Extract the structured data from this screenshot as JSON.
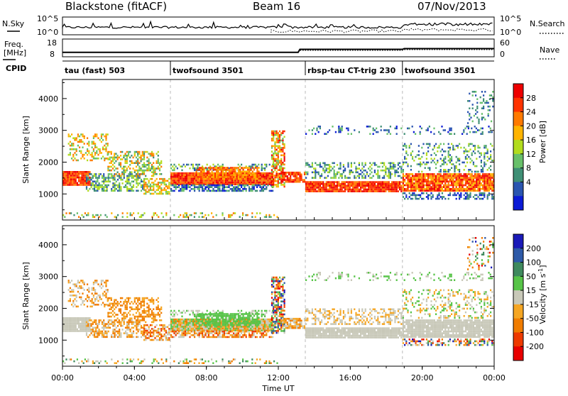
{
  "header": {
    "station": "Blackstone (fitACF)",
    "beam": "Beam 16",
    "date": "07/Nov/2013"
  },
  "chart_data": [
    {
      "type": "line",
      "panel": "noise",
      "left_label": "N.Sky",
      "right_label": "N.Search",
      "left_ticks": [
        "10^5",
        "10^0"
      ],
      "right_ticks": [
        "10^5",
        "10^0"
      ]
    },
    {
      "type": "line",
      "panel": "frequency",
      "left_label_line1": "Freq.",
      "left_label_line2": "[MHz]",
      "right_label": "Nave",
      "left_ticks": [
        "18",
        "8"
      ],
      "right_ticks": [
        "60",
        "0"
      ],
      "x": [
        0,
        13.1,
        13.2,
        18.9,
        19.0,
        24
      ],
      "freq": [
        10.5,
        10.5,
        12.2,
        12.2,
        12.6,
        12.6
      ]
    },
    {
      "type": "table",
      "panel": "cpid",
      "label": "CPID",
      "segments": [
        {
          "start": 0.0,
          "end": 6.0,
          "name": "tau (fast) 503"
        },
        {
          "start": 6.0,
          "end": 13.5,
          "name": "twofsound 3501"
        },
        {
          "start": 13.5,
          "end": 18.9,
          "name": "rbsp-tau CT-trig 230"
        },
        {
          "start": 18.9,
          "end": 24.0,
          "name": "twofsound 3501"
        }
      ]
    },
    {
      "type": "heatmap",
      "panel": "power",
      "ylabel": "Slant Range [km]",
      "yticks": [
        1000,
        2000,
        3000,
        4000
      ],
      "ylim": [
        180,
        4600
      ],
      "colorbar_label": "Power [dB]",
      "colorbar_ticks": [
        "28",
        "24",
        "20",
        "16",
        "12",
        "8",
        "4"
      ],
      "colors": [
        "#0b1bd6",
        "#2a55b0",
        "#3f8f75",
        "#68c06a",
        "#b2dc1e",
        "#ffb400",
        "#ff7a00",
        "#ff3300",
        "#ee0000"
      ]
    },
    {
      "type": "heatmap",
      "panel": "velocity",
      "ylabel": "Slant Range [km]",
      "yticks": [
        1000,
        2000,
        3000,
        4000
      ],
      "ylim": [
        180,
        4600
      ],
      "colorbar_label": "Velocity [m s^-1]",
      "colorbar_ticks": [
        "200",
        "100",
        "50",
        "15",
        "-15",
        "-50",
        "-100",
        "-200"
      ],
      "colors": [
        "#1a1ab8",
        "#2e5aa8",
        "#3f8a5e",
        "#57c448",
        "#c8c8b8",
        "#f5a623",
        "#f07c00",
        "#ee3a00",
        "#e80000"
      ]
    }
  ],
  "xaxis": {
    "label": "Time UT",
    "ticks": [
      "00:00",
      "04:00",
      "08:00",
      "12:00",
      "16:00",
      "20:00",
      "00:00"
    ],
    "tick_hours": [
      0,
      4,
      8,
      12,
      16,
      20,
      24
    ],
    "xlim": [
      0,
      24
    ]
  }
}
